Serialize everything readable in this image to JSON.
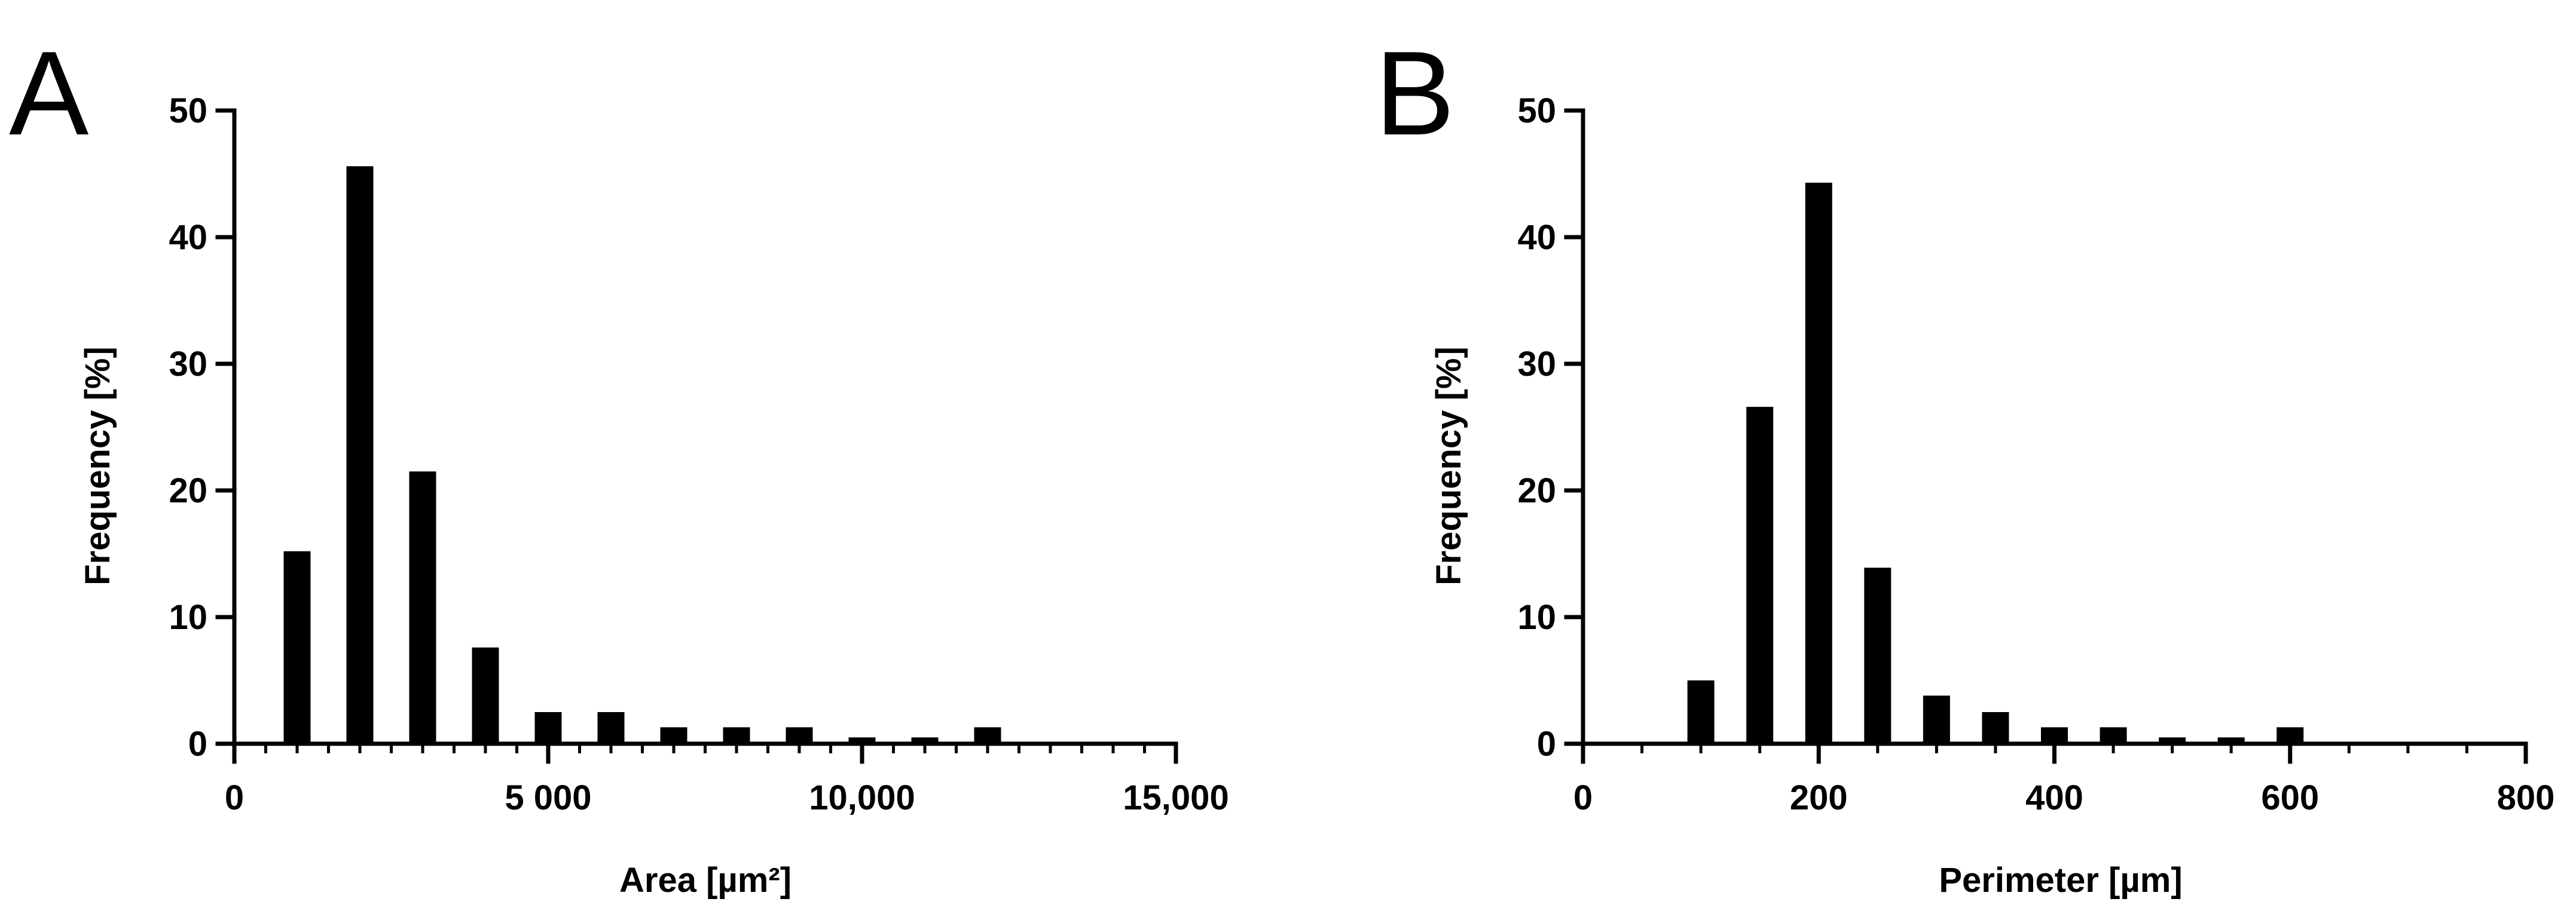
{
  "chart_data": [
    {
      "panel_label": "A",
      "type": "bar",
      "xlabel": "Area [µm²]",
      "ylabel": "Frequency [%]",
      "xlim": [
        0,
        15000
      ],
      "ylim": [
        0,
        50
      ],
      "x_ticks": [
        0,
        5000,
        10000,
        15000
      ],
      "x_tick_labels": [
        "0",
        "5 000",
        "10,000",
        "15,000"
      ],
      "x_minor_step": 500,
      "y_ticks": [
        0,
        10,
        20,
        30,
        40,
        50
      ],
      "y_tick_labels": [
        "0",
        "10",
        "20",
        "30",
        "40",
        "50"
      ],
      "bin_width": 1000,
      "x": [
        1000,
        2000,
        3000,
        4000,
        5000,
        6000,
        7000,
        8000,
        9000,
        10000,
        11000,
        12000
      ],
      "values": [
        15.2,
        45.6,
        21.5,
        7.6,
        2.5,
        2.5,
        1.3,
        1.3,
        1.3,
        0.5,
        0.5,
        1.3
      ],
      "grid": false,
      "color": "#000000"
    },
    {
      "panel_label": "B",
      "type": "bar",
      "xlabel": "Perimeter [µm]",
      "ylabel": "Frequency [%]",
      "xlim": [
        0,
        800
      ],
      "ylim": [
        0,
        50
      ],
      "x_ticks": [
        0,
        200,
        400,
        600,
        800
      ],
      "x_tick_labels": [
        "0",
        "200",
        "400",
        "600",
        "800"
      ],
      "x_minor_step": 50,
      "y_ticks": [
        0,
        10,
        20,
        30,
        40,
        50
      ],
      "y_tick_labels": [
        "0",
        "10",
        "20",
        "30",
        "40",
        "50"
      ],
      "bin_width": 50,
      "x": [
        100,
        150,
        200,
        250,
        300,
        350,
        400,
        450,
        500,
        550,
        600
      ],
      "values": [
        5.0,
        26.6,
        44.3,
        13.9,
        3.8,
        2.5,
        1.3,
        1.3,
        0.5,
        0.5,
        1.3
      ],
      "grid": false,
      "color": "#000000"
    }
  ]
}
